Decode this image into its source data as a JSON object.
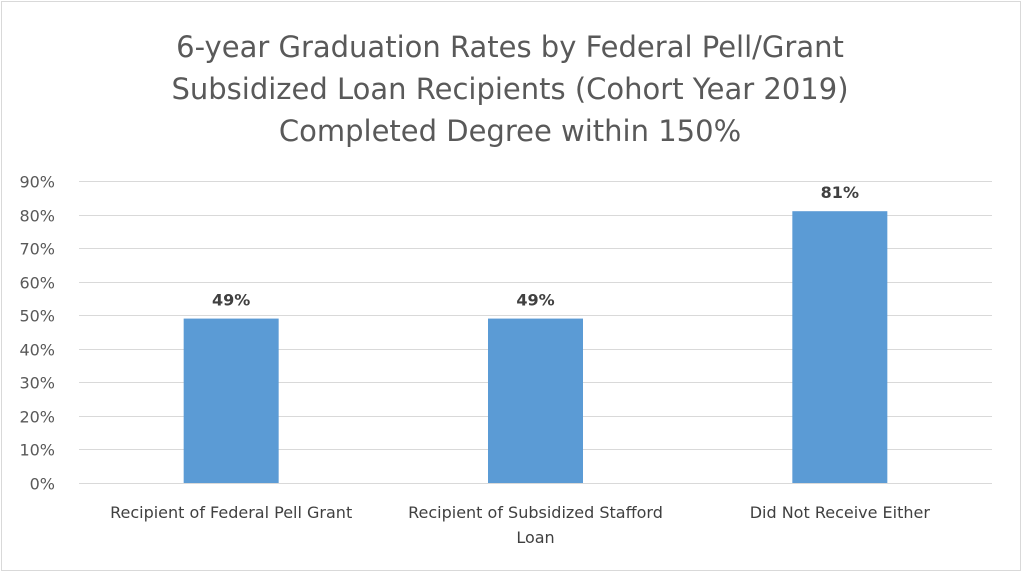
{
  "chart_data": {
    "type": "bar",
    "title_lines": [
      "6-year Graduation Rates by Federal Pell/Grant",
      "Subsidized Loan Recipients (Cohort Year 2019)",
      "Completed Degree within 150%"
    ],
    "categories": [
      [
        "Recipient of Federal Pell Grant"
      ],
      [
        "Recipient of Subsidized Stafford",
        "Loan"
      ],
      [
        "Did Not Receive Either"
      ]
    ],
    "values": [
      49,
      49,
      81
    ],
    "data_labels": [
      "49%",
      "49%",
      "81%"
    ],
    "ylim": [
      0,
      90
    ],
    "yticks": [
      0,
      10,
      20,
      30,
      40,
      50,
      60,
      70,
      80,
      90
    ],
    "ytick_labels": [
      "0%",
      "10%",
      "20%",
      "30%",
      "40%",
      "50%",
      "60%",
      "70%",
      "80%",
      "90%"
    ],
    "xlabel": "",
    "ylabel": "",
    "grid": true,
    "bar_color": "#5b9bd5",
    "grid_color": "#d9d9d9"
  }
}
